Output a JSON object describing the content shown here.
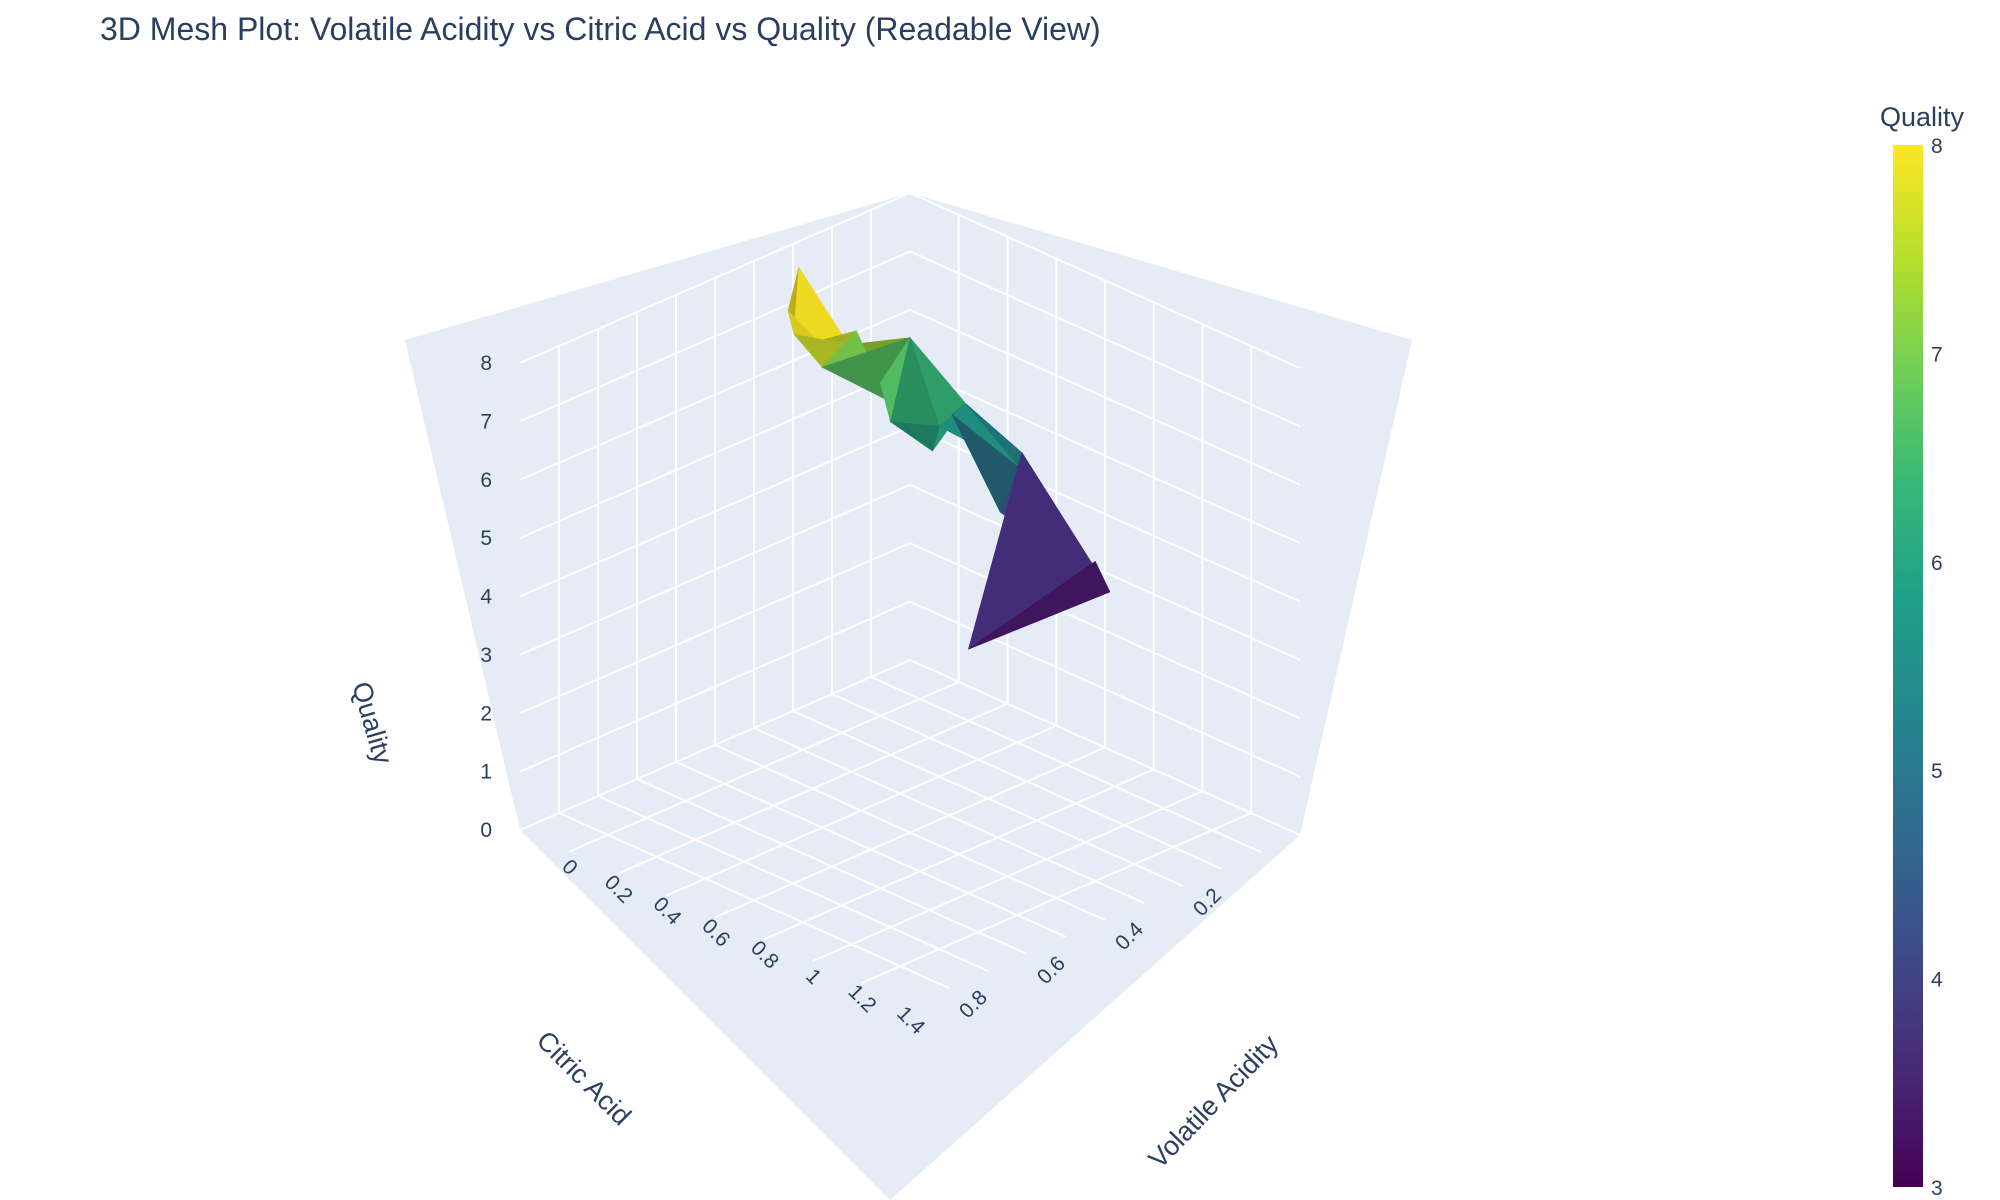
{
  "chart_data": {
    "type": "mesh3d",
    "title": "3D Mesh Plot: Volatile Acidity vs Citric Acid vs Quality (Readable View)",
    "x_label": "Volatile Acidity",
    "y_label": "Citric Acid",
    "z_label": "Quality",
    "x_ticks": [
      "0",
      "0.2",
      "0.4",
      "0.6",
      "0.8",
      "1",
      "1.2",
      "1.4"
    ],
    "y_ticks": [
      "0.2",
      "0.4",
      "0.6",
      "0.8"
    ],
    "z_ticks": [
      "0",
      "1",
      "2",
      "3",
      "4",
      "5",
      "6",
      "7",
      "8"
    ],
    "x_range": [
      0,
      1.6
    ],
    "y_range": [
      0,
      1.0
    ],
    "z_range": [
      0,
      8
    ],
    "colorscale": "Viridis",
    "colorbar": {
      "title": "Quality",
      "ticks": [
        "3",
        "4",
        "5",
        "6",
        "7",
        "8"
      ],
      "min": 3,
      "max": 8
    },
    "vertices": [
      {
        "x": 0.24,
        "y": 0.45,
        "z": 8
      },
      {
        "x": 0.18,
        "y": 0.4,
        "z": 8
      },
      {
        "x": 0.12,
        "y": 0.36,
        "z": 8
      },
      {
        "x": 0.3,
        "y": 0.5,
        "z": 8
      },
      {
        "x": 0.42,
        "y": 0.56,
        "z": 8
      },
      {
        "x": 0.5,
        "y": 0.55,
        "z": 8
      },
      {
        "x": 0.58,
        "y": 0.52,
        "z": 8
      },
      {
        "x": 0.26,
        "y": 0.3,
        "z": 7
      },
      {
        "x": 0.36,
        "y": 0.45,
        "z": 7
      },
      {
        "x": 0.55,
        "y": 0.42,
        "z": 7
      },
      {
        "x": 0.4,
        "y": 0.25,
        "z": 7
      },
      {
        "x": 0.48,
        "y": 0.35,
        "z": 6
      },
      {
        "x": 0.6,
        "y": 0.3,
        "z": 6
      },
      {
        "x": 0.7,
        "y": 0.38,
        "z": 6
      },
      {
        "x": 0.55,
        "y": 0.2,
        "z": 6
      },
      {
        "x": 0.3,
        "y": 0.08,
        "z": 5
      },
      {
        "x": 0.7,
        "y": 0.15,
        "z": 5
      },
      {
        "x": 0.85,
        "y": 0.3,
        "z": 5
      },
      {
        "x": 0.62,
        "y": 0.1,
        "z": 5
      },
      {
        "x": 0.9,
        "y": 0.05,
        "z": 3
      },
      {
        "x": 0.88,
        "y": 0.4,
        "z": 3
      },
      {
        "x": 1.0,
        "y": 0.15,
        "z": 4
      }
    ]
  }
}
